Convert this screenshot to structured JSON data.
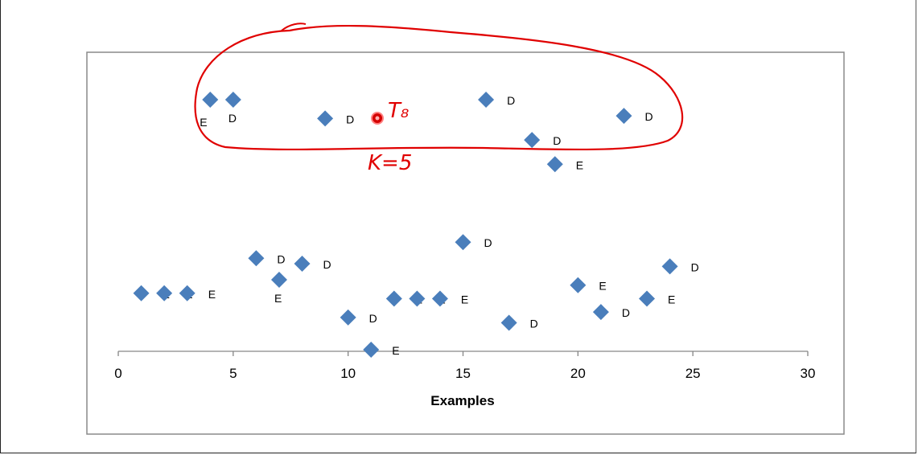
{
  "chart_data": {
    "type": "scatter",
    "xlabel": "Examples",
    "ylabel": "",
    "xlim": [
      0,
      30
    ],
    "xticks": [
      0,
      5,
      10,
      15,
      20,
      25,
      30
    ],
    "grid": false,
    "marker": "diamond",
    "marker_color": "#4a7ebb",
    "points": [
      {
        "x": 4,
        "y": 0.93,
        "label": "E"
      },
      {
        "x": 5,
        "y": 0.93,
        "label": "D"
      },
      {
        "x": 9,
        "y": 0.86,
        "label": "D"
      },
      {
        "x": 16,
        "y": 0.93,
        "label": "D"
      },
      {
        "x": 22,
        "y": 0.87,
        "label": "D"
      },
      {
        "x": 18,
        "y": 0.78,
        "label": "D"
      },
      {
        "x": 19,
        "y": 0.69,
        "label": "E"
      },
      {
        "x": 15,
        "y": 0.4,
        "label": "D"
      },
      {
        "x": 6,
        "y": 0.34,
        "label": "D"
      },
      {
        "x": 8,
        "y": 0.32,
        "label": "D"
      },
      {
        "x": 7,
        "y": 0.26,
        "label": "E"
      },
      {
        "x": 24,
        "y": 0.31,
        "label": "D"
      },
      {
        "x": 20,
        "y": 0.24,
        "label": "E"
      },
      {
        "x": 1,
        "y": 0.21,
        "label": "E"
      },
      {
        "x": 2,
        "y": 0.21,
        "label": "E"
      },
      {
        "x": 3,
        "y": 0.21,
        "label": "E"
      },
      {
        "x": 12,
        "y": 0.19,
        "label": "E"
      },
      {
        "x": 13,
        "y": 0.19,
        "label": "E"
      },
      {
        "x": 14,
        "y": 0.19,
        "label": "E"
      },
      {
        "x": 23,
        "y": 0.19,
        "label": "E"
      },
      {
        "x": 21,
        "y": 0.14,
        "label": "D"
      },
      {
        "x": 10,
        "y": 0.12,
        "label": "D"
      },
      {
        "x": 17,
        "y": 0.1,
        "label": "D"
      },
      {
        "x": 11,
        "y": 0.0,
        "label": "E"
      }
    ],
    "annotations": {
      "query_label": "T₈",
      "k_label": "K=5",
      "ink_color": "#e00000"
    }
  }
}
